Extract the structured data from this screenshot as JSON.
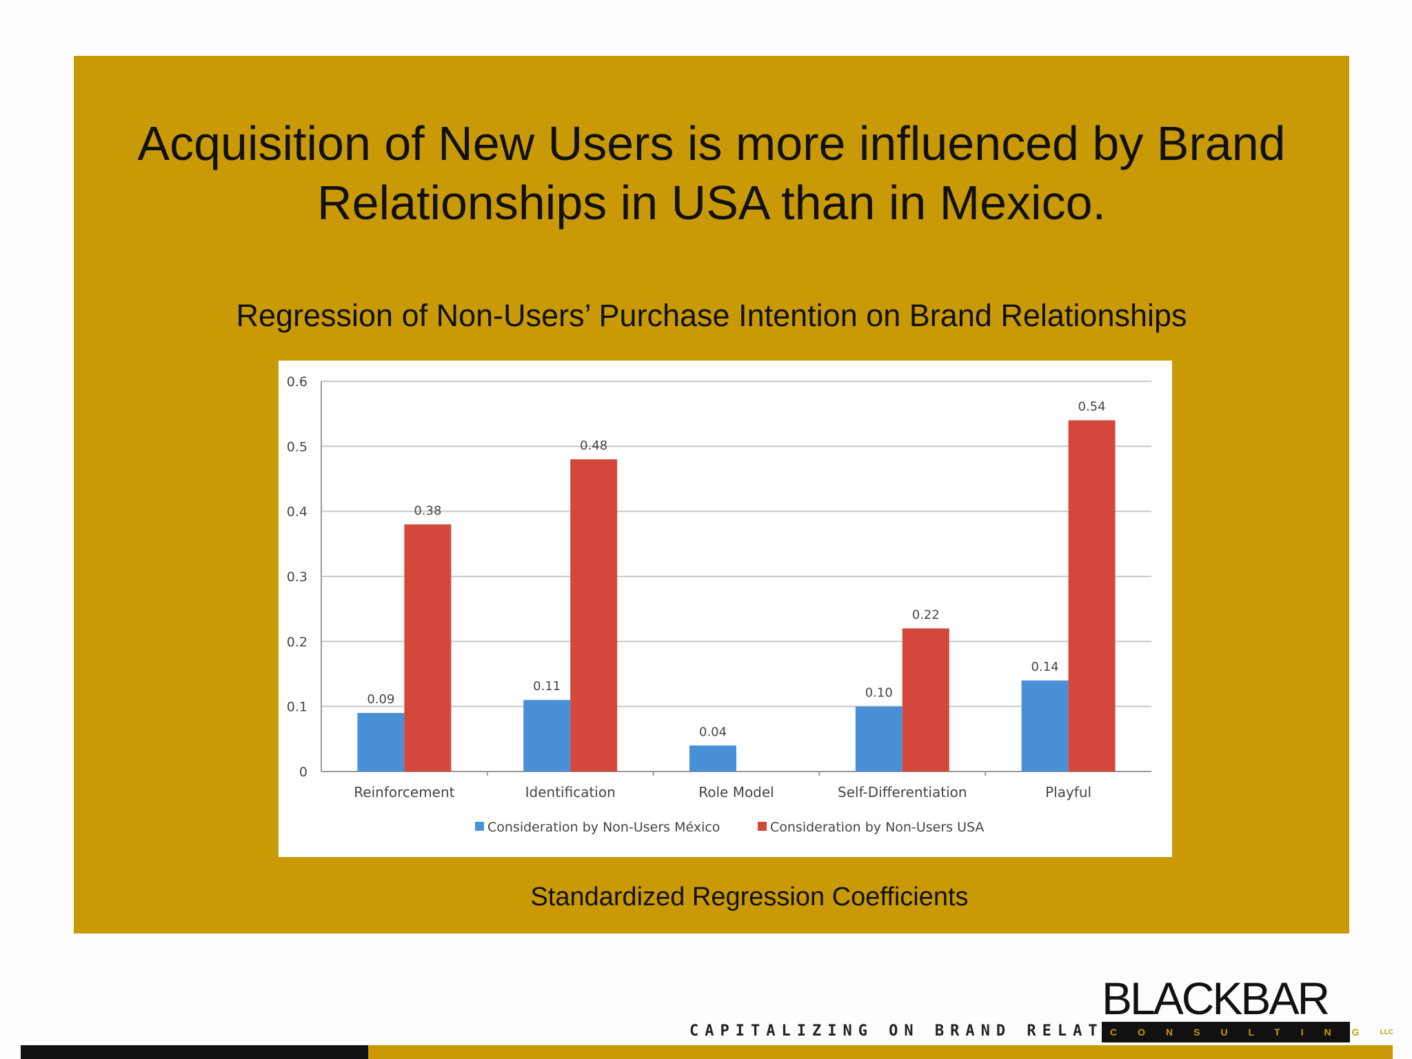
{
  "slide": {
    "headline": "Acquisition of New Users is more influenced by Brand Relationships in USA than in Mexico.",
    "subtitle": "Regression of Non-Users’ Purchase Intention on Brand Relationships",
    "caption": "Standardized Regression Coefficients",
    "tagline": "CAPITALIZING ON BRAND RELATIONSHIPS.",
    "logo_main": "BLACKBAR",
    "logo_sub": "CONSULTING",
    "logo_llc": "LLC",
    "colors": {
      "panel": "#c99a06",
      "mexico": "#4a90d6",
      "usa": "#d4473b"
    }
  },
  "chart_data": {
    "type": "bar",
    "categories": [
      "Reinforcement",
      "Identification",
      "Role Model",
      "Self-Differentiation",
      "Playful"
    ],
    "series": [
      {
        "name": "Consideration by Non-Users México",
        "values": [
          0.09,
          0.11,
          0.04,
          0.1,
          0.14
        ],
        "labels": [
          "0.09",
          "0.11",
          "0.04",
          "0.10",
          "0.14"
        ],
        "color": "#4a90d6"
      },
      {
        "name": "Consideration by Non-Users USA",
        "values": [
          0.38,
          0.48,
          null,
          0.22,
          0.54
        ],
        "labels": [
          "0.38",
          "0.48",
          null,
          "0.22",
          "0.54"
        ],
        "color": "#d4473b"
      }
    ],
    "yticks": [
      "0",
      "0.1",
      "0.2",
      "0.3",
      "0.4",
      "0.5",
      "0.6"
    ],
    "ylim": [
      0,
      0.6
    ],
    "grid": true,
    "legend": "bottom"
  }
}
